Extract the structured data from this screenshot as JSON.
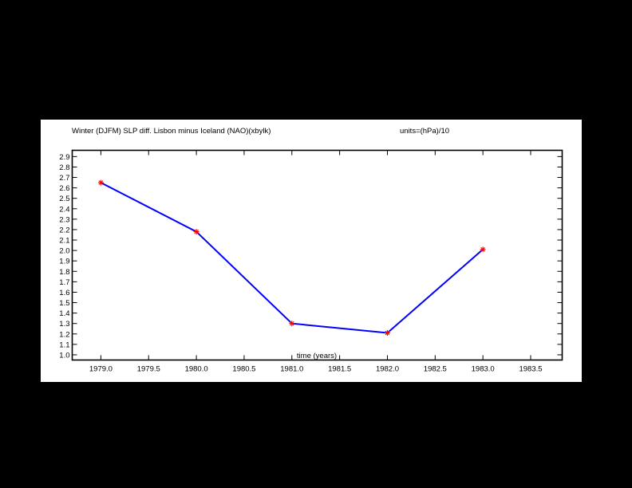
{
  "header": {
    "title": "Winter (DJFM) SLP diff. Lisbon minus Iceland (NAO)(xbylk)",
    "units": "units=(hPa)/10"
  },
  "chart_data": {
    "type": "line",
    "title": "Winter (DJFM) SLP diff. Lisbon minus Iceland (NAO)(xbylk)",
    "xlabel": "time (years)",
    "ylabel": "",
    "units": "units=(hPa)/10",
    "x": [
      1979.0,
      1980.0,
      1981.0,
      1982.0,
      1983.0
    ],
    "series": [
      {
        "values": [
          2.65,
          2.18,
          1.3,
          1.21,
          2.01
        ]
      }
    ],
    "xlim": [
      1978.7,
      1983.83
    ],
    "ylim": [
      0.95,
      2.96
    ],
    "xticks": [
      "1979.0",
      "1979.5",
      "1980.0",
      "1980.5",
      "1981.0",
      "1981.5",
      "1982.0",
      "1982.5",
      "1983.0",
      "1983.5"
    ],
    "yticks": [
      "1.0",
      "1.1",
      "1.2",
      "1.3",
      "1.4",
      "1.5",
      "1.6",
      "1.7",
      "1.8",
      "1.9",
      "2.0",
      "2.1",
      "2.2",
      "2.3",
      "2.4",
      "2.5",
      "2.6",
      "2.7",
      "2.8",
      "2.9"
    ],
    "grid": false,
    "line_color": "#0000ff",
    "marker_color": "#ff0000",
    "marker": "asterisk"
  }
}
